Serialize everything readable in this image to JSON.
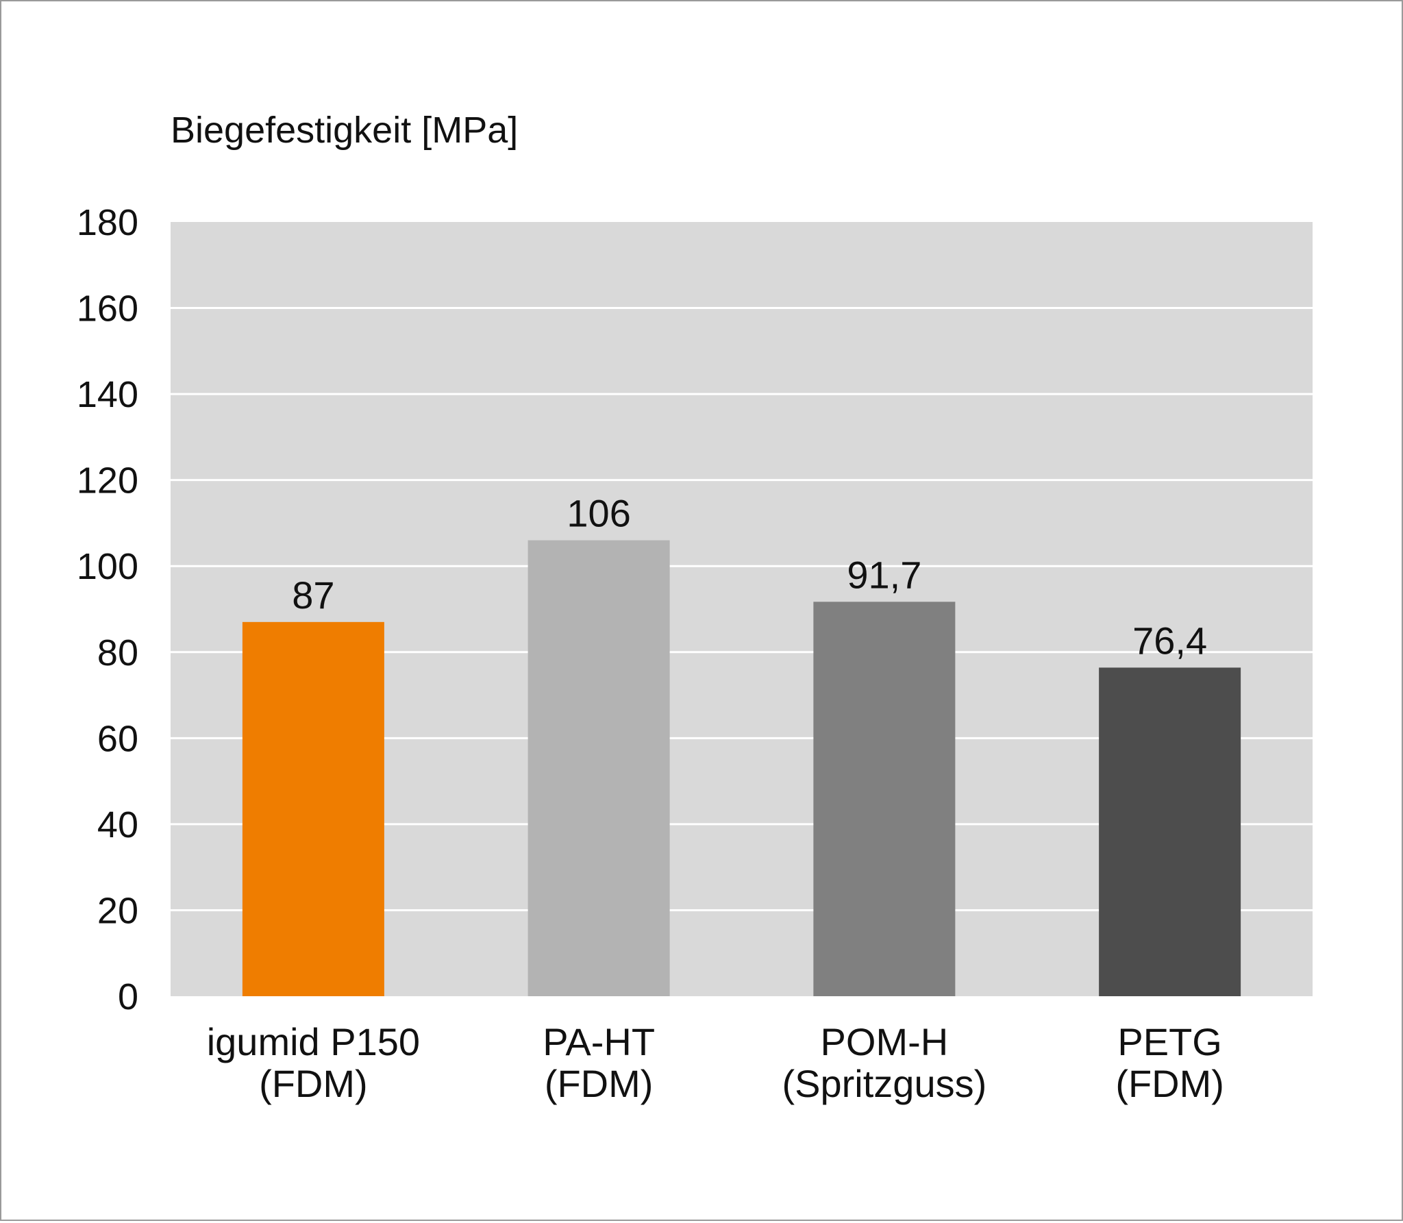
{
  "chart_data": {
    "type": "bar",
    "ylabel": "Biegefestigkeit [MPa]",
    "ylim": [
      0,
      180
    ],
    "yticks": [
      "0",
      "20",
      "40",
      "60",
      "80",
      "100",
      "120",
      "140",
      "160",
      "180"
    ],
    "grid": true,
    "series": [
      {
        "categories": [
          [
            "igumid P150",
            "(FDM)"
          ],
          [
            "PA-HT",
            "(FDM)"
          ],
          [
            "POM-H",
            "(Spritzguss)"
          ],
          [
            "PETG",
            "(FDM)"
          ]
        ],
        "values": [
          87,
          106,
          91.7,
          76.4
        ],
        "value_labels": [
          "87",
          "106",
          "91,7",
          "76,4"
        ],
        "colors": [
          "#ef7d00",
          "#b3b3b3",
          "#808080",
          "#4d4d4d"
        ]
      }
    ]
  },
  "style": {
    "plot_background": "#d9d9d9",
    "grid_color": "#ffffff"
  }
}
